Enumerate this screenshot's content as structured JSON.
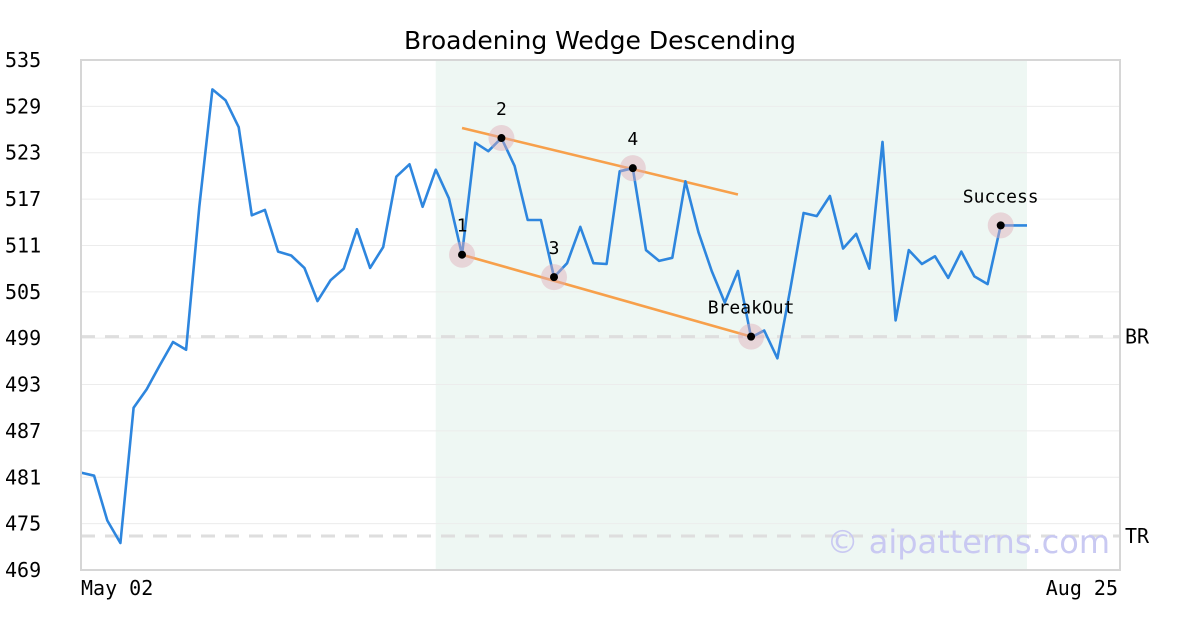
{
  "chart_data": {
    "type": "line",
    "title": "Broadening Wedge Descending",
    "x_tick_labels": [
      "May 02",
      "Aug 25"
    ],
    "ylim": [
      469,
      535
    ],
    "y_ticks": [
      469,
      475,
      481,
      487,
      493,
      499,
      505,
      511,
      517,
      523,
      529,
      535
    ],
    "grid": "horizontal",
    "series": [
      {
        "color": "#2e86de",
        "values": [
          481.6,
          481.2,
          475.4,
          472.5,
          490.0,
          492.4,
          495.5,
          498.5,
          497.5,
          516.0,
          531.2,
          529.8,
          526.3,
          514.9,
          515.6,
          510.2,
          509.7,
          508.1,
          503.8,
          506.5,
          508.0,
          513.1,
          508.1,
          510.8,
          519.9,
          521.5,
          516.0,
          520.8,
          517.1,
          509.8,
          524.3,
          523.2,
          524.9,
          521.3,
          514.3,
          514.3,
          506.9,
          508.7,
          513.4,
          508.7,
          508.6,
          520.6,
          521.0,
          510.4,
          509.0,
          509.4,
          519.3,
          512.7,
          507.7,
          503.6,
          507.7,
          499.1,
          500.0,
          496.4,
          505.5,
          515.2,
          514.8,
          517.4,
          510.6,
          512.5,
          508.0,
          524.4,
          501.3,
          510.4,
          508.6,
          509.6,
          506.8,
          510.2,
          507.0,
          506.0,
          513.6,
          513.6,
          513.6
        ]
      }
    ],
    "highlight_range": {
      "start_index": 27,
      "end_index": 72,
      "color": "#eef7f3"
    },
    "trendlines": [
      {
        "color": "#f7a04b",
        "from": {
          "index": 29,
          "value": 526.2
        },
        "to": {
          "index": 50,
          "value": 517.6
        }
      },
      {
        "color": "#f7a04b",
        "from": {
          "index": 29,
          "value": 509.8
        },
        "to": {
          "index": 51,
          "value": 499.2
        }
      }
    ],
    "markers": [
      {
        "label": "1",
        "index": 29,
        "value": 509.8
      },
      {
        "label": "2",
        "index": 32,
        "value": 524.9
      },
      {
        "label": "3",
        "index": 36,
        "value": 506.9
      },
      {
        "label": "4",
        "index": 42,
        "value": 521.0
      },
      {
        "label": "BreakOut",
        "index": 51,
        "value": 499.2
      },
      {
        "label": "Success",
        "index": 70,
        "value": 513.6
      }
    ],
    "reference_lines": [
      {
        "label": "BR",
        "value": 499.2
      },
      {
        "label": "TR",
        "value": 473.4
      }
    ],
    "watermark": "© aipatterns.com"
  }
}
